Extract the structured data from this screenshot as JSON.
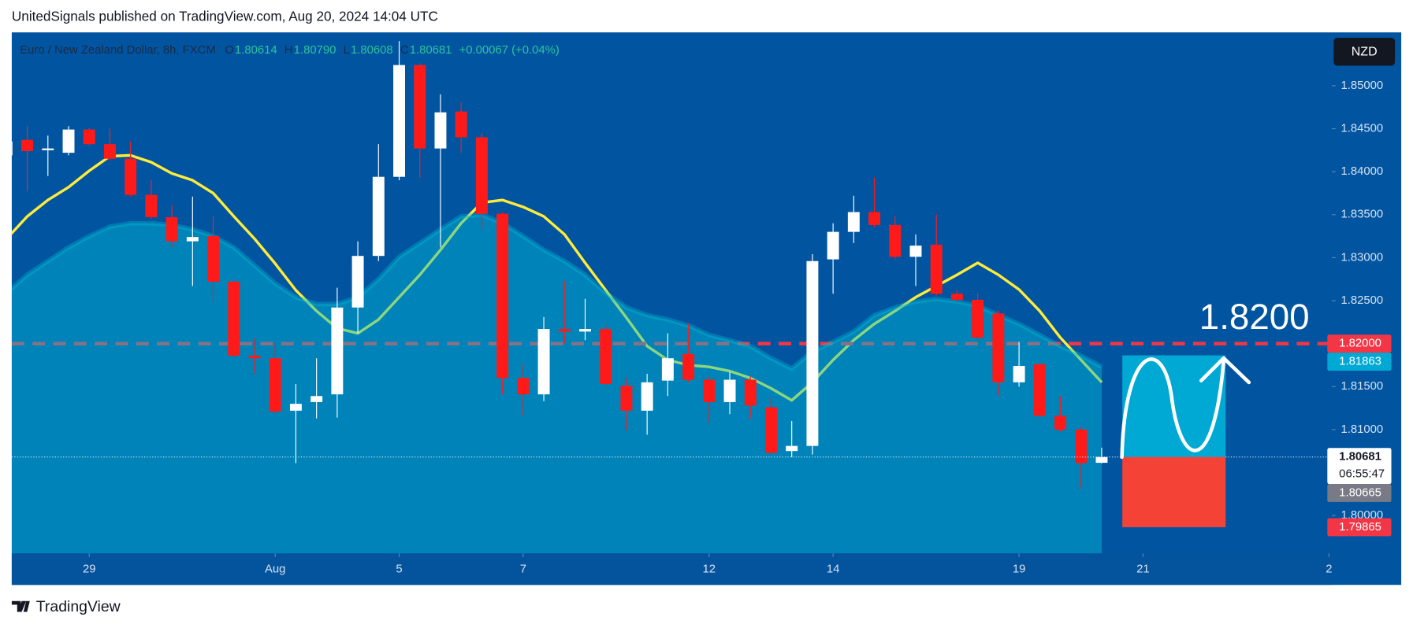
{
  "header": {
    "text": "UnitedSignals published on TradingView.com, Aug 20, 2024 14:04 UTC"
  },
  "footer": {
    "brand": "TradingView"
  },
  "chart_data": {
    "type": "candlestick",
    "title": "Euro / New Zealand Dollar, 8h, FXCM",
    "legend": {
      "items": [
        {
          "key": "O",
          "value": "1.80614"
        },
        {
          "key": "H",
          "value": "1.80790"
        },
        {
          "key": "L",
          "value": "1.80608"
        },
        {
          "key": "C",
          "value": "1.80681"
        }
      ],
      "change": "+0.00067 (+0.04%)"
    },
    "currency": "NZD",
    "up_color": "#ffffff",
    "down_color": "#ff1a1a",
    "x": [
      0,
      1,
      2,
      3,
      4,
      5,
      6,
      7,
      8,
      9,
      10,
      11,
      12,
      13,
      14,
      15,
      16,
      17,
      18,
      19,
      20,
      21,
      22,
      23,
      24,
      25,
      26,
      27,
      28,
      29,
      30,
      31,
      32,
      33,
      34,
      35,
      36,
      37,
      38,
      39,
      40,
      41,
      42,
      43,
      44,
      45,
      46,
      47,
      48,
      49,
      50,
      51,
      52,
      53
    ],
    "open": [
      1.8419,
      1.8437,
      1.8425,
      1.8422,
      1.8449,
      1.8432,
      1.8415,
      1.8373,
      1.8347,
      1.8319,
      1.8325,
      1.8272,
      1.8186,
      1.8183,
      1.8122,
      1.8132,
      1.8141,
      1.8242,
      1.8302,
      1.8394,
      1.8524,
      1.8427,
      1.847,
      1.844,
      1.8351,
      1.816,
      1.8141,
      1.8217,
      1.8214,
      1.8217,
      1.8151,
      1.8122,
      1.8157,
      1.8188,
      1.8158,
      1.8132,
      1.8158,
      1.8126,
      1.8075,
      1.8081,
      1.8298,
      1.833,
      1.8353,
      1.8338,
      1.8301,
      1.8315,
      1.8258,
      1.8251,
      1.8235,
      1.8155,
      1.8176,
      1.8116,
      1.81,
      1.80614
    ],
    "high": [
      1.8442,
      1.8453,
      1.8442,
      1.8453,
      1.8451,
      1.845,
      1.8435,
      1.839,
      1.8361,
      1.8371,
      1.8348,
      1.8275,
      1.8206,
      1.8201,
      1.8153,
      1.8183,
      1.8265,
      1.8319,
      1.8432,
      1.8552,
      1.8526,
      1.849,
      1.8481,
      1.8445,
      1.8353,
      1.8176,
      1.8231,
      1.8273,
      1.8252,
      1.8223,
      1.816,
      1.8165,
      1.8212,
      1.8223,
      1.8162,
      1.8167,
      1.8162,
      1.8138,
      1.811,
      1.8304,
      1.834,
      1.8372,
      1.8393,
      1.8348,
      1.8327,
      1.835,
      1.8263,
      1.8259,
      1.8239,
      1.8202,
      1.8179,
      1.8139,
      1.8103,
      1.8079
    ],
    "low": [
      1.8416,
      1.8377,
      1.8395,
      1.8419,
      1.843,
      1.8413,
      1.8371,
      1.8345,
      1.8312,
      1.8267,
      1.8249,
      1.8183,
      1.8165,
      1.8118,
      1.8061,
      1.8113,
      1.8114,
      1.8212,
      1.8296,
      1.839,
      1.8393,
      1.8312,
      1.8422,
      1.8333,
      1.8141,
      1.8116,
      1.8133,
      1.82,
      1.8204,
      1.815,
      1.8099,
      1.8094,
      1.8139,
      1.8155,
      1.8108,
      1.8118,
      1.8113,
      1.8071,
      1.8068,
      1.8071,
      1.8258,
      1.8317,
      1.8335,
      1.8298,
      1.8267,
      1.8256,
      1.8248,
      1.8202,
      1.8139,
      1.815,
      1.8113,
      1.8097,
      1.8031,
      1.80608
    ],
    "close": [
      1.8435,
      1.8424,
      1.8427,
      1.8449,
      1.8432,
      1.8415,
      1.8373,
      1.8347,
      1.8319,
      1.8324,
      1.8272,
      1.8186,
      1.8183,
      1.8121,
      1.813,
      1.8139,
      1.8242,
      1.8302,
      1.8394,
      1.8524,
      1.8427,
      1.8469,
      1.844,
      1.8351,
      1.816,
      1.8141,
      1.8217,
      1.8214,
      1.8217,
      1.8153,
      1.8122,
      1.8155,
      1.8183,
      1.8158,
      1.8132,
      1.8158,
      1.8128,
      1.8073,
      1.8081,
      1.8296,
      1.833,
      1.8353,
      1.8338,
      1.8301,
      1.8314,
      1.8258,
      1.8251,
      1.8207,
      1.8155,
      1.8174,
      1.8116,
      1.81,
      1.8061,
      1.80681
    ],
    "overlays": [
      {
        "kind": "line",
        "color": "#ffeb3b",
        "values": [
          1.8322,
          1.8348,
          1.8367,
          1.8382,
          1.8401,
          1.8418,
          1.8419,
          1.8411,
          1.8398,
          1.839,
          1.8375,
          1.8348,
          1.8322,
          1.8293,
          1.8262,
          1.8238,
          1.8218,
          1.8212,
          1.8228,
          1.8254,
          1.828,
          1.8309,
          1.834,
          1.8364,
          1.8367,
          1.8359,
          1.8348,
          1.8327,
          1.8294,
          1.8262,
          1.823,
          1.8197,
          1.8181,
          1.8175,
          1.8173,
          1.8168,
          1.816,
          1.8148,
          1.8134,
          1.8155,
          1.8181,
          1.8204,
          1.8223,
          1.8238,
          1.8254,
          1.8267,
          1.828,
          1.8294,
          1.828,
          1.8263,
          1.8238,
          1.8207,
          1.8181,
          1.8155
        ]
      },
      {
        "kind": "area",
        "color": "#00bcd4",
        "values": [
          1.8259,
          1.828,
          1.8296,
          1.8312,
          1.8325,
          1.8336,
          1.834,
          1.834,
          1.8338,
          1.8333,
          1.8325,
          1.8312,
          1.8291,
          1.827,
          1.8254,
          1.8246,
          1.8246,
          1.8254,
          1.8275,
          1.8301,
          1.8317,
          1.8333,
          1.8348,
          1.835,
          1.834,
          1.8325,
          1.8309,
          1.8296,
          1.828,
          1.8259,
          1.8242,
          1.8233,
          1.8228,
          1.8221,
          1.821,
          1.8204,
          1.8197,
          1.8183,
          1.8171,
          1.8191,
          1.8202,
          1.8214,
          1.8233,
          1.8242,
          1.8249,
          1.8252,
          1.8249,
          1.8244,
          1.8233,
          1.8223,
          1.821,
          1.8197,
          1.8186,
          1.8173
        ]
      }
    ],
    "xlim": [
      0.25,
      64.14
    ],
    "xticks": [
      {
        "value": 4,
        "label": "29"
      },
      {
        "value": 13,
        "label": "Aug"
      },
      {
        "value": 19,
        "label": "5"
      },
      {
        "value": 25,
        "label": "7"
      },
      {
        "value": 34,
        "label": "12"
      },
      {
        "value": 40,
        "label": "14"
      },
      {
        "value": 49,
        "label": "19"
      },
      {
        "value": 55,
        "label": "21"
      },
      {
        "value": 64,
        "label": "2"
      }
    ],
    "ylim": [
      1.7956,
      1.8562
    ],
    "yticks": [
      {
        "value": 1.8,
        "label": "1.80000"
      },
      {
        "value": 1.805,
        "label": "1.80500"
      },
      {
        "value": 1.81,
        "label": "1.81000"
      },
      {
        "value": 1.815,
        "label": "1.81500"
      },
      {
        "value": 1.82,
        "label": "1.82000"
      },
      {
        "value": 1.825,
        "label": "1.82500"
      },
      {
        "value": 1.83,
        "label": "1.83000"
      },
      {
        "value": 1.835,
        "label": "1.83500"
      },
      {
        "value": 1.84,
        "label": "1.84000"
      },
      {
        "value": 1.845,
        "label": "1.84500"
      },
      {
        "value": 1.85,
        "label": "1.85000"
      }
    ],
    "price_line": {
      "value": 1.82,
      "color": "#f23645"
    },
    "annotation": {
      "text": "1.8200"
    },
    "position": {
      "x": [
        54,
        59
      ],
      "entry": 1.80681,
      "target": 1.81863,
      "stop": 1.79865,
      "target_color": "#00a9d4",
      "stop_color": "#f44336"
    },
    "price_tags": [
      {
        "value": 1.82,
        "label": "1.82000",
        "color": "#f23645"
      },
      {
        "value": 1.81863,
        "label": "1.81863",
        "color": "#00a9d4"
      },
      {
        "value": 1.80681,
        "label": "1.80681",
        "color": "#ffffff",
        "sublabel": "06:55:47"
      },
      {
        "value": 1.80665,
        "label": "1.80665",
        "color": "#787b86"
      },
      {
        "value": 1.79865,
        "label": "1.79865",
        "color": "#f23645"
      }
    ]
  }
}
